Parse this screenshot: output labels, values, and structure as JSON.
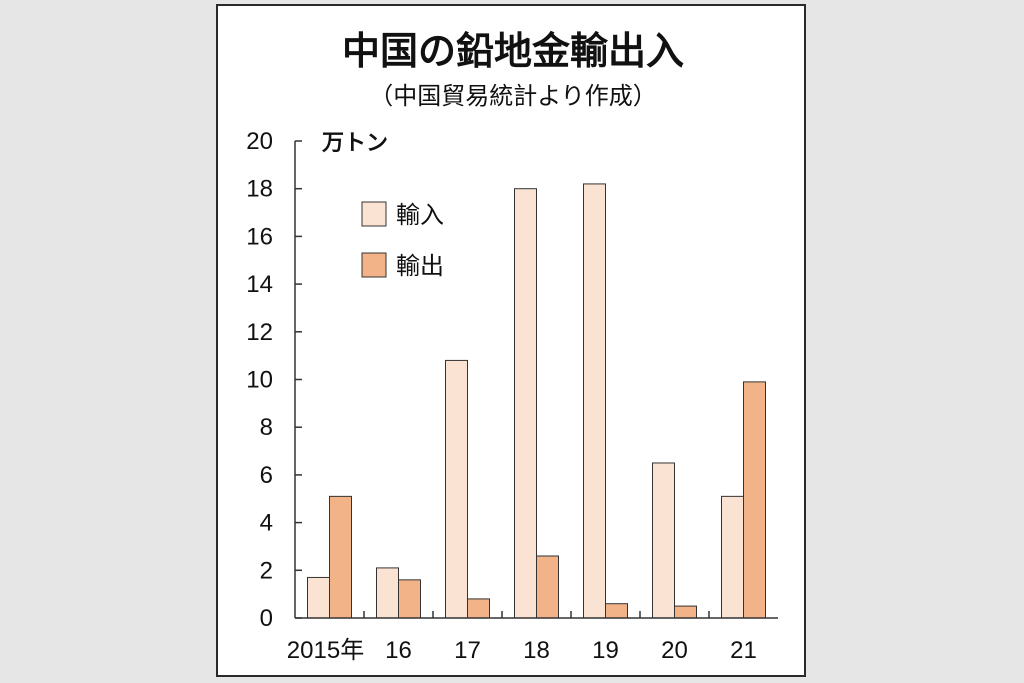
{
  "chart_data": {
    "type": "bar",
    "title": "中国の鉛地金輸出入",
    "subtitle": "（中国貿易統計より作成）",
    "unit_label": "万トン",
    "categories": [
      "2015年",
      "16",
      "17",
      "18",
      "19",
      "20",
      "21"
    ],
    "series": [
      {
        "name": "輸入",
        "color": "#fbe3d3",
        "values": [
          1.7,
          2.1,
          10.8,
          18.0,
          18.2,
          6.5,
          5.1
        ]
      },
      {
        "name": "輸出",
        "color": "#f3b389",
        "values": [
          5.1,
          1.6,
          0.8,
          2.6,
          0.6,
          0.5,
          9.9
        ]
      }
    ],
    "ylim": [
      0,
      20
    ],
    "yticks": [
      0,
      2,
      4,
      6,
      8,
      10,
      12,
      14,
      16,
      18,
      20
    ],
    "legend_position": "top-left",
    "grid": false
  }
}
